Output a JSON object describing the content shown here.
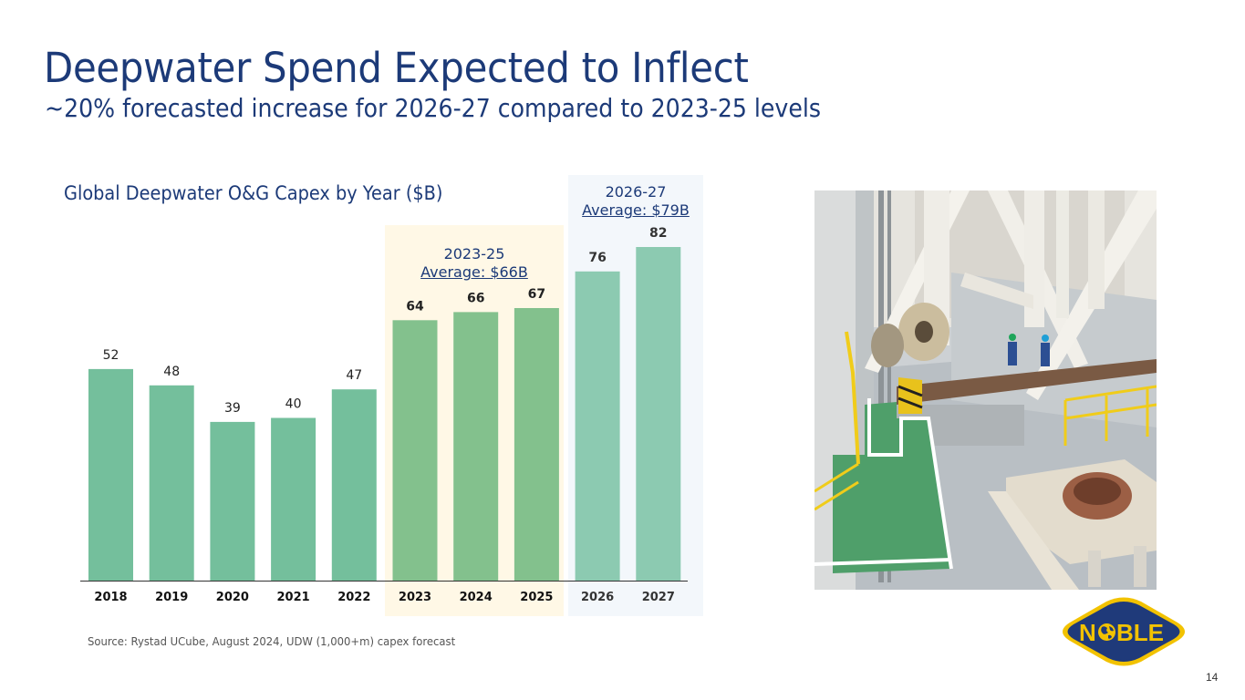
{
  "header": {
    "title": "Deepwater Spend Expected to Inflect",
    "subtitle": "~20% forecasted increase for 2026-27 compared to 2023-25 levels"
  },
  "highlights": {
    "period_2023_25": {
      "label": "2023-25",
      "average": "Average: $66B",
      "color": "#fff8e6"
    },
    "period_2026_27": {
      "label": "2026-27",
      "average": "Average: $79B",
      "color": "#f3f7fb"
    }
  },
  "chart_data": {
    "type": "bar",
    "title": "Global Deepwater O&G Capex by Year ($B)",
    "xlabel": "",
    "ylabel": "",
    "categories": [
      "2018",
      "2019",
      "2020",
      "2021",
      "2022",
      "2023",
      "2024",
      "2025",
      "2026",
      "2027"
    ],
    "values": [
      52,
      48,
      39,
      40,
      47,
      64,
      66,
      67,
      76,
      82
    ],
    "data_labels": [
      "52",
      "48",
      "39",
      "40",
      "47",
      "64",
      "66",
      "67",
      "76",
      "82"
    ],
    "ylim": [
      0,
      82
    ],
    "grid": false,
    "legend": "none",
    "groups": [
      "historical",
      "historical",
      "historical",
      "historical",
      "historical",
      "2023-25",
      "2023-25",
      "2023-25",
      "2026-27",
      "2026-27"
    ],
    "colors": {
      "historical": "#74bf9c",
      "2023-25": "#83c18d",
      "2026-27": "#8ccab1"
    },
    "label_styles": {
      "historical": {
        "weight": "normal",
        "color": "#222222"
      },
      "2023-25": {
        "weight": "bold",
        "color": "#222222"
      },
      "2026-27": {
        "weight": "bold",
        "color": "#333333"
      }
    },
    "tick_colors": {
      "historical": "#111111",
      "2023-25": "#111111",
      "2026-27": "#333333"
    }
  },
  "footer": {
    "source": "Source: Rystad UCube, August 2024, UDW (1,000+m) capex forecast",
    "page_number": "14"
  },
  "logo": {
    "text": "NOBLE",
    "fill": "#1f3a7a",
    "accent": "#f2c200"
  },
  "photo": {
    "subject": "offshore-rig-deck-photo"
  }
}
